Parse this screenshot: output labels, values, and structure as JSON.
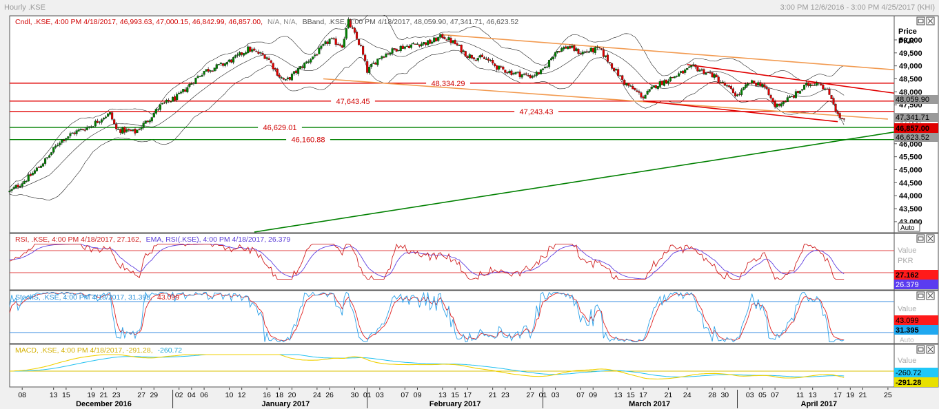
{
  "window": {
    "title": "Hourly .KSE",
    "range": "3:00 PM 12/6/2016 - 3:00 PM 4/25/2017 (KHI)"
  },
  "colors": {
    "up": "#008000",
    "down": "#e00000",
    "hline_red": "#e00000",
    "hline_green": "#008000",
    "trend_orange": "#f29a50",
    "rsi": "#d02020",
    "rsi_ema": "#6040e0",
    "stoch_k": "#2aa0e8",
    "stoch_d": "#e02020",
    "macd": "#f0d000",
    "macd_signal": "#20c0f0"
  },
  "price_panel": {
    "legend_cndl": "Cndl, .KSE, 4:00 PM 4/18/2017, 46,993.63, 47,000.15, 46,842.99, 46,857.00,",
    "legend_na": "N/A, N/A,",
    "legend_bband": "BBand, .KSE, 4:00 PM 4/18/2017, 48,059.90, 47,341.71, 46,623.52",
    "axis_title_1": "Price",
    "axis_title_2": "PKR",
    "auto_label": "Auto",
    "tags": {
      "bb_upper": "48,059.90",
      "bb_mid": "47,341.71",
      "last_hidden": "47,000",
      "last": "46,857.00",
      "bb_lower": "46,623.52"
    },
    "hline_labels": [
      "48,334.29",
      "47,643.45",
      "47,243.43",
      "46,629.01",
      "46,160.88"
    ]
  },
  "rsi_panel": {
    "legend_rsi": "RSI, .KSE, 4:00 PM 4/18/2017, 27.162,",
    "legend_ema": "EMA, RSI(.KSE), 4:00 PM 4/18/2017, 26.379",
    "value_label": "Value",
    "unit_label": "PKR",
    "tag_rsi": "27.162",
    "tag_ema": "26.379"
  },
  "stoch_panel": {
    "legend_k": "StochS, .KSE, 4:00 PM 4/18/2017, 31.395,",
    "legend_d": "43.099",
    "value_label": "Value",
    "auto_label": "Auto",
    "tag_d": "43.099",
    "tag_k": "31.395"
  },
  "macd_panel": {
    "legend_macd": "MACD, .KSE, 4:00 PM 4/18/2017, -291.28,",
    "legend_signal": "-260.72",
    "value_label": "Value",
    "tag_signal": "-260.72",
    "tag_macd": "-291.28"
  },
  "chart_data": [
    {
      "type": "candlestick",
      "y_ticks": [
        "50,000",
        "49,500",
        "49,000",
        "48,500",
        "48,000",
        "47,500",
        "47,000",
        "46,500",
        "46,000",
        "45,500",
        "45,000",
        "44,500",
        "44,000",
        "43,500",
        "43,000"
      ],
      "ylim": [
        42600,
        50900
      ],
      "x_range": [
        "2016-12-06",
        "2017-04-26"
      ],
      "month_labels": [
        {
          "label": "December 2016",
          "date": "2016-12-21"
        },
        {
          "label": "January 2017",
          "date": "2017-01-19"
        },
        {
          "label": "February 2017",
          "date": "2017-02-15"
        },
        {
          "label": "March 2017",
          "date": "2017-03-18"
        },
        {
          "label": "April 2017",
          "date": "2017-04-14"
        }
      ],
      "month_boundaries": [
        "2017-01-01",
        "2017-02-01",
        "2017-03-01",
        "2017-04-01"
      ],
      "day_ticks": [
        {
          "label": "08",
          "date": "2016-12-08"
        },
        {
          "label": "13",
          "date": "2016-12-13"
        },
        {
          "label": "15",
          "date": "2016-12-15"
        },
        {
          "label": "19",
          "date": "2016-12-19"
        },
        {
          "label": "21",
          "date": "2016-12-21"
        },
        {
          "label": "23",
          "date": "2016-12-23"
        },
        {
          "label": "27",
          "date": "2016-12-27"
        },
        {
          "label": "29",
          "date": "2016-12-29"
        },
        {
          "label": "02",
          "date": "2017-01-02"
        },
        {
          "label": "04",
          "date": "2017-01-04"
        },
        {
          "label": "06",
          "date": "2017-01-06"
        },
        {
          "label": "10",
          "date": "2017-01-10"
        },
        {
          "label": "12",
          "date": "2017-01-12"
        },
        {
          "label": "16",
          "date": "2017-01-16"
        },
        {
          "label": "18",
          "date": "2017-01-18"
        },
        {
          "label": "20",
          "date": "2017-01-20"
        },
        {
          "label": "24",
          "date": "2017-01-24"
        },
        {
          "label": "26",
          "date": "2017-01-26"
        },
        {
          "label": "30",
          "date": "2017-01-30"
        },
        {
          "label": "01",
          "date": "2017-02-01"
        },
        {
          "label": "03",
          "date": "2017-02-03"
        },
        {
          "label": "07",
          "date": "2017-02-07"
        },
        {
          "label": "09",
          "date": "2017-02-09"
        },
        {
          "label": "13",
          "date": "2017-02-13"
        },
        {
          "label": "15",
          "date": "2017-02-15"
        },
        {
          "label": "17",
          "date": "2017-02-17"
        },
        {
          "label": "21",
          "date": "2017-02-21"
        },
        {
          "label": "23",
          "date": "2017-02-23"
        },
        {
          "label": "27",
          "date": "2017-02-27"
        },
        {
          "label": "01",
          "date": "2017-03-01"
        },
        {
          "label": "03",
          "date": "2017-03-03"
        },
        {
          "label": "07",
          "date": "2017-03-07"
        },
        {
          "label": "09",
          "date": "2017-03-09"
        },
        {
          "label": "13",
          "date": "2017-03-13"
        },
        {
          "label": "15",
          "date": "2017-03-15"
        },
        {
          "label": "17",
          "date": "2017-03-17"
        },
        {
          "label": "21",
          "date": "2017-03-21"
        },
        {
          "label": "24",
          "date": "2017-03-24"
        },
        {
          "label": "28",
          "date": "2017-03-28"
        },
        {
          "label": "30",
          "date": "2017-03-30"
        },
        {
          "label": "03",
          "date": "2017-04-03"
        },
        {
          "label": "05",
          "date": "2017-04-05"
        },
        {
          "label": "07",
          "date": "2017-04-07"
        },
        {
          "label": "11",
          "date": "2017-04-11"
        },
        {
          "label": "13",
          "date": "2017-04-13"
        },
        {
          "label": "17",
          "date": "2017-04-17"
        },
        {
          "label": "19",
          "date": "2017-04-19"
        },
        {
          "label": "21",
          "date": "2017-04-21"
        },
        {
          "label": "25",
          "date": "2017-04-25"
        }
      ],
      "close_path": [
        [
          "2016-12-06",
          44150
        ],
        [
          "2016-12-09",
          44700
        ],
        [
          "2016-12-12",
          45450
        ],
        [
          "2016-12-14",
          46100
        ],
        [
          "2016-12-16",
          46400
        ],
        [
          "2016-12-19",
          46700
        ],
        [
          "2016-12-21",
          47050
        ],
        [
          "2016-12-22",
          47150
        ],
        [
          "2016-12-23",
          46550
        ],
        [
          "2016-12-26",
          46450
        ],
        [
          "2016-12-28",
          46900
        ],
        [
          "2016-12-30",
          47450
        ],
        [
          "2017-01-02",
          47850
        ],
        [
          "2017-01-04",
          48350
        ],
        [
          "2017-01-06",
          48800
        ],
        [
          "2017-01-09",
          49050
        ],
        [
          "2017-01-11",
          49300
        ],
        [
          "2017-01-13",
          49650
        ],
        [
          "2017-01-16",
          49350
        ],
        [
          "2017-01-18",
          48600
        ],
        [
          "2017-01-19",
          48400
        ],
        [
          "2017-01-21",
          48850
        ],
        [
          "2017-01-24",
          49500
        ],
        [
          "2017-01-26",
          50000
        ],
        [
          "2017-01-28",
          49800
        ],
        [
          "2017-01-29",
          50700
        ],
        [
          "2017-01-31",
          49700
        ],
        [
          "2017-02-01",
          48800
        ],
        [
          "2017-02-03",
          49350
        ],
        [
          "2017-02-06",
          49700
        ],
        [
          "2017-02-09",
          49850
        ],
        [
          "2017-02-11",
          49900
        ],
        [
          "2017-02-13",
          50150
        ],
        [
          "2017-02-15",
          49850
        ],
        [
          "2017-02-17",
          49400
        ],
        [
          "2017-02-20",
          49250
        ],
        [
          "2017-02-22",
          48900
        ],
        [
          "2017-02-24",
          48750
        ],
        [
          "2017-02-27",
          48600
        ],
        [
          "2017-03-01",
          48800
        ],
        [
          "2017-03-03",
          49550
        ],
        [
          "2017-03-05",
          49750
        ],
        [
          "2017-03-07",
          49500
        ],
        [
          "2017-03-10",
          49650
        ],
        [
          "2017-03-12",
          49000
        ],
        [
          "2017-03-14",
          48350
        ],
        [
          "2017-03-17",
          47800
        ],
        [
          "2017-03-19",
          48250
        ],
        [
          "2017-03-22",
          48600
        ],
        [
          "2017-03-25",
          48950
        ],
        [
          "2017-03-28",
          48650
        ],
        [
          "2017-03-30",
          48250
        ],
        [
          "2017-04-01",
          47850
        ],
        [
          "2017-04-03",
          48350
        ],
        [
          "2017-04-05",
          48300
        ],
        [
          "2017-04-07",
          47450
        ],
        [
          "2017-04-10",
          47850
        ],
        [
          "2017-04-12",
          48250
        ],
        [
          "2017-04-14",
          48400
        ],
        [
          "2017-04-16",
          47800
        ],
        [
          "2017-04-17",
          47100
        ],
        [
          "2017-04-18",
          46857
        ]
      ],
      "bollinger": {
        "upper": 48059.9,
        "middle": 47341.71,
        "lower": 46623.52
      },
      "horizontal_levels": [
        {
          "value": 48334.29,
          "color": "red"
        },
        {
          "value": 47643.45,
          "color": "red"
        },
        {
          "value": 47243.43,
          "color": "red"
        },
        {
          "value": 46629.01,
          "color": "green"
        },
        {
          "value": 46160.88,
          "color": "green"
        }
      ],
      "trend_lines": [
        {
          "color": "orange",
          "from": [
            "2017-02-13",
            50200
          ],
          "to": [
            "2017-04-26",
            48850
          ]
        },
        {
          "color": "orange",
          "from": [
            "2017-01-25",
            48500
          ],
          "to": [
            "2017-04-25",
            46950
          ]
        },
        {
          "color": "red",
          "from": [
            "2017-03-24",
            49050
          ],
          "to": [
            "2017-04-26",
            47950
          ]
        },
        {
          "color": "red",
          "from": [
            "2017-03-17",
            47650
          ],
          "to": [
            "2017-04-17",
            46850
          ]
        },
        {
          "color": "green",
          "from": [
            "2017-01-14",
            42600
          ],
          "to": [
            "2017-04-26",
            46450
          ]
        }
      ]
    },
    {
      "type": "line",
      "name": "RSI",
      "ylim": [
        0,
        100
      ],
      "levels": [
        70,
        30
      ],
      "last_values": {
        "rsi": 27.162,
        "ema": 26.379
      }
    },
    {
      "type": "line",
      "name": "StochS",
      "ylim": [
        0,
        100
      ],
      "levels": [
        80,
        20
      ],
      "last_values": {
        "k": 31.395,
        "d": 43.099
      }
    },
    {
      "type": "line",
      "name": "MACD",
      "last_values": {
        "macd": -291.28,
        "signal": -260.72
      }
    }
  ]
}
